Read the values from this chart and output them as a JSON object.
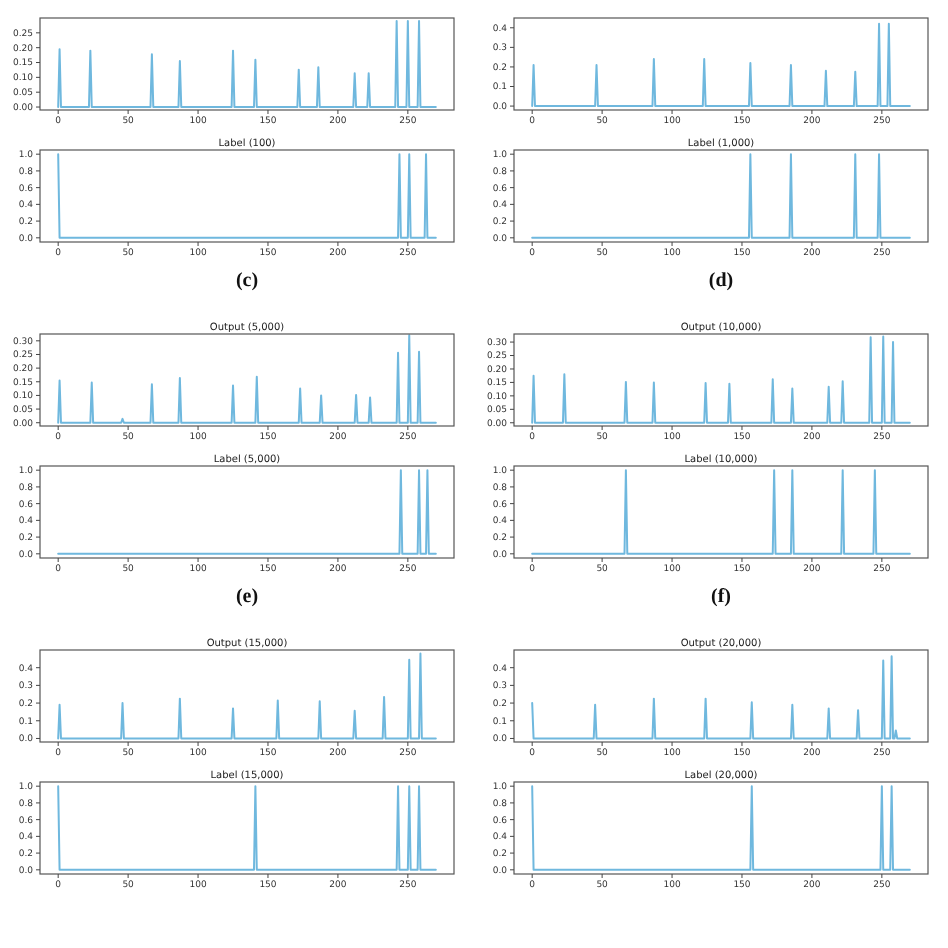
{
  "chart_data": [
    {
      "type": "line",
      "x": [
        0,
        1,
        2,
        22,
        23,
        24,
        66,
        67,
        68,
        86,
        87,
        88,
        124,
        125,
        126,
        140,
        141,
        142,
        171,
        172,
        173,
        185,
        186,
        187,
        211,
        212,
        213,
        221,
        222,
        223,
        241,
        242,
        243,
        249,
        250,
        251,
        257,
        258,
        259,
        270
      ],
      "series": [
        {
          "color": "#6fb8de",
          "values": [
            0,
            0.195,
            0,
            0,
            0.19,
            0,
            0,
            0.178,
            0,
            0,
            0.155,
            0,
            0,
            0.19,
            0,
            0,
            0.159,
            0,
            0,
            0.126,
            0,
            0,
            0.134,
            0,
            0,
            0.114,
            0,
            0,
            0.114,
            0,
            0,
            0.29,
            0,
            0,
            0.29,
            0,
            0,
            0.29,
            0,
            0
          ]
        }
      ],
      "xlim": [
        -13,
        283
      ],
      "ylim": [
        -0.01,
        0.3
      ],
      "xticks": [
        0,
        50,
        100,
        150,
        200,
        250
      ],
      "yticks": [
        {
          "value": 0,
          "label": "0.00"
        },
        0.05,
        {
          "value": 0.1,
          "label": "0.10"
        },
        0.15,
        {
          "value": 0.2,
          "label": "0.20"
        },
        0.25
      ]
    },
    {
      "type": "line",
      "x": [
        0,
        1,
        2,
        45,
        46,
        47,
        86,
        87,
        88,
        122,
        123,
        124,
        155,
        156,
        157,
        184,
        185,
        186,
        209,
        210,
        211,
        230,
        231,
        232,
        247,
        248,
        249,
        254,
        255,
        256,
        270
      ],
      "series": [
        {
          "color": "#6fb8de",
          "values": [
            0,
            0.21,
            0,
            0,
            0.21,
            0,
            0,
            0.24,
            0,
            0,
            0.24,
            0,
            0,
            0.22,
            0,
            0,
            0.21,
            0,
            0,
            0.18,
            0,
            0,
            0.175,
            0,
            0,
            0.42,
            0,
            0,
            0.42,
            0,
            0
          ]
        }
      ],
      "xlim": [
        -13,
        283
      ],
      "ylim": [
        -0.02,
        0.45
      ],
      "xticks": [
        0,
        50,
        100,
        150,
        200,
        250
      ],
      "yticks": [
        {
          "value": 0,
          "label": "0.0"
        },
        0.1,
        0.2,
        0.3,
        0.4
      ]
    },
    {
      "type": "line",
      "title": "Label (100)",
      "annotations": [
        "(c)"
      ],
      "x": [
        0,
        1,
        243,
        244,
        245,
        250,
        251,
        252,
        262,
        263,
        264,
        270
      ],
      "series": [
        {
          "color": "#6fb8de",
          "values": [
            1,
            0,
            0,
            1,
            0,
            0,
            1,
            0,
            0,
            1,
            0,
            0
          ]
        }
      ],
      "xlim": [
        -13,
        283
      ],
      "ylim": [
        -0.05,
        1.05
      ],
      "xticks": [
        0,
        50,
        100,
        150,
        200,
        250
      ],
      "yticks": [
        {
          "value": 0,
          "label": "0.0"
        },
        0.2,
        0.4,
        0.6,
        0.8,
        {
          "value": 1,
          "label": "1.0"
        }
      ]
    },
    {
      "type": "line",
      "title": "Label (1,000)",
      "annotations": [
        "(d)"
      ],
      "x": [
        0,
        155,
        156,
        157,
        184,
        185,
        186,
        230,
        231,
        232,
        247,
        248,
        249,
        270
      ],
      "series": [
        {
          "color": "#6fb8de",
          "values": [
            0,
            0,
            1,
            0,
            0,
            1,
            0,
            0,
            1,
            0,
            0,
            1,
            0,
            0
          ]
        }
      ],
      "xlim": [
        -13,
        283
      ],
      "ylim": [
        -0.05,
        1.05
      ],
      "xticks": [
        0,
        50,
        100,
        150,
        200,
        250
      ],
      "yticks": [
        {
          "value": 0,
          "label": "0.0"
        },
        0.2,
        0.4,
        0.6,
        0.8,
        {
          "value": 1,
          "label": "1.0"
        }
      ]
    },
    {
      "type": "line",
      "title": "Output (5,000)",
      "x": [
        0,
        1,
        2,
        23,
        24,
        25,
        45,
        46,
        47,
        66,
        67,
        68,
        86,
        87,
        88,
        124,
        125,
        126,
        141,
        142,
        143,
        172,
        173,
        174,
        187,
        188,
        189,
        212,
        213,
        214,
        222,
        223,
        224,
        242,
        243,
        244,
        250,
        251,
        252,
        257,
        258,
        259,
        270
      ],
      "series": [
        {
          "color": "#6fb8de",
          "values": [
            0,
            0.155,
            0,
            0,
            0.147,
            0,
            0,
            0.014,
            0,
            0,
            0.141,
            0,
            0,
            0.164,
            0,
            0,
            0.136,
            0,
            0,
            0.168,
            0,
            0,
            0.125,
            0,
            0,
            0.1,
            0,
            0,
            0.102,
            0,
            0,
            0.092,
            0,
            0,
            0.256,
            0,
            0,
            0.32,
            0,
            0,
            0.26,
            0,
            0
          ]
        }
      ],
      "xlim": [
        -13,
        283
      ],
      "ylim": [
        -0.012,
        0.325
      ],
      "xticks": [
        0,
        50,
        100,
        150,
        200,
        250
      ],
      "yticks": [
        {
          "value": 0,
          "label": "0.00"
        },
        0.05,
        {
          "value": 0.1,
          "label": "0.10"
        },
        0.15,
        {
          "value": 0.2,
          "label": "0.20"
        },
        0.25,
        {
          "value": 0.3,
          "label": "0.30"
        }
      ]
    },
    {
      "type": "line",
      "title": "Output (10,000)",
      "x": [
        0,
        1,
        2,
        22,
        23,
        24,
        66,
        67,
        68,
        86,
        87,
        88,
        123,
        124,
        125,
        140,
        141,
        142,
        171,
        172,
        173,
        185,
        186,
        187,
        211,
        212,
        213,
        221,
        222,
        223,
        241,
        242,
        243,
        250,
        251,
        252,
        257,
        258,
        259,
        270
      ],
      "series": [
        {
          "color": "#6fb8de",
          "values": [
            0,
            0.175,
            0,
            0,
            0.18,
            0,
            0,
            0.152,
            0,
            0,
            0.15,
            0,
            0,
            0.148,
            0,
            0,
            0.145,
            0,
            0,
            0.162,
            0,
            0,
            0.127,
            0,
            0,
            0.134,
            0,
            0,
            0.154,
            0,
            0,
            0.318,
            0,
            0,
            0.321,
            0,
            0,
            0.3,
            0,
            0
          ]
        }
      ],
      "xlim": [
        -13,
        283
      ],
      "ylim": [
        -0.012,
        0.33
      ],
      "xticks": [
        0,
        50,
        100,
        150,
        200,
        250
      ],
      "yticks": [
        {
          "value": 0,
          "label": "0.00"
        },
        0.05,
        {
          "value": 0.1,
          "label": "0.10"
        },
        0.15,
        {
          "value": 0.2,
          "label": "0.20"
        },
        0.25,
        {
          "value": 0.3,
          "label": "0.30"
        }
      ]
    },
    {
      "type": "line",
      "title": "Label (5,000)",
      "annotations": [
        "(e)"
      ],
      "x": [
        0,
        244,
        245,
        246,
        257,
        258,
        259,
        263,
        264,
        265,
        270
      ],
      "series": [
        {
          "color": "#6fb8de",
          "values": [
            0,
            0,
            1,
            0,
            0,
            1,
            0,
            0,
            1,
            0,
            0
          ]
        }
      ],
      "xlim": [
        -13,
        283
      ],
      "ylim": [
        -0.05,
        1.05
      ],
      "xticks": [
        0,
        50,
        100,
        150,
        200,
        250
      ],
      "yticks": [
        {
          "value": 0,
          "label": "0.0"
        },
        0.2,
        0.4,
        0.6,
        0.8,
        {
          "value": 1,
          "label": "1.0"
        }
      ]
    },
    {
      "type": "line",
      "title": "Label (10,000)",
      "annotations": [
        "(f)"
      ],
      "x": [
        0,
        66,
        67,
        68,
        172,
        173,
        174,
        185,
        186,
        187,
        221,
        222,
        223,
        244,
        245,
        246,
        270
      ],
      "series": [
        {
          "color": "#6fb8de",
          "values": [
            0,
            0,
            1,
            0,
            0,
            1,
            0,
            0,
            1,
            0,
            0,
            1,
            0,
            0,
            1,
            0,
            0
          ]
        }
      ],
      "xlim": [
        -13,
        283
      ],
      "ylim": [
        -0.05,
        1.05
      ],
      "xticks": [
        0,
        50,
        100,
        150,
        200,
        250
      ],
      "yticks": [
        {
          "value": 0,
          "label": "0.0"
        },
        0.2,
        0.4,
        0.6,
        0.8,
        {
          "value": 1,
          "label": "1.0"
        }
      ]
    },
    {
      "type": "line",
      "title": "Output (15,000)",
      "x": [
        0,
        1,
        2,
        45,
        46,
        47,
        86,
        87,
        88,
        124,
        125,
        126,
        156,
        157,
        158,
        186,
        187,
        188,
        211,
        212,
        213,
        232,
        233,
        234,
        250,
        251,
        252,
        258,
        259,
        260,
        270
      ],
      "series": [
        {
          "color": "#6fb8de",
          "values": [
            0,
            0.19,
            0,
            0,
            0.2,
            0,
            0,
            0.225,
            0,
            0,
            0.17,
            0,
            0,
            0.215,
            0,
            0,
            0.21,
            0,
            0,
            0.157,
            0,
            0,
            0.235,
            0,
            0,
            0.445,
            0,
            0,
            0.48,
            0,
            0
          ]
        }
      ],
      "xlim": [
        -13,
        283
      ],
      "ylim": [
        -0.02,
        0.5
      ],
      "xticks": [
        0,
        50,
        100,
        150,
        200,
        250
      ],
      "yticks": [
        {
          "value": 0,
          "label": "0.0"
        },
        0.1,
        0.2,
        0.3,
        0.4
      ]
    },
    {
      "type": "line",
      "title": "Output (20,000)",
      "x": [
        0,
        1,
        44,
        45,
        46,
        86,
        87,
        88,
        123,
        124,
        125,
        156,
        157,
        158,
        185,
        186,
        187,
        211,
        212,
        213,
        232,
        233,
        234,
        250,
        251,
        252,
        256,
        257,
        258,
        259,
        260,
        261,
        270
      ],
      "series": [
        {
          "color": "#6fb8de",
          "values": [
            0.2,
            0,
            0,
            0.19,
            0,
            0,
            0.225,
            0,
            0,
            0.225,
            0,
            0,
            0.205,
            0,
            0,
            0.19,
            0,
            0,
            0.17,
            0,
            0,
            0.16,
            0,
            0,
            0.44,
            0,
            0,
            0.465,
            0,
            0,
            0.045,
            0,
            0
          ]
        }
      ],
      "xlim": [
        -13,
        283
      ],
      "ylim": [
        -0.02,
        0.5
      ],
      "xticks": [
        0,
        50,
        100,
        150,
        200,
        250
      ],
      "yticks": [
        {
          "value": 0,
          "label": "0.0"
        },
        0.1,
        0.2,
        0.3,
        0.4
      ]
    },
    {
      "type": "line",
      "title": "Label (15,000)",
      "x": [
        0,
        1,
        140,
        141,
        142,
        242,
        243,
        244,
        250,
        251,
        252,
        257,
        258,
        259,
        270
      ],
      "series": [
        {
          "color": "#6fb8de",
          "values": [
            1,
            0,
            0,
            1,
            0,
            0,
            1,
            0,
            0,
            1,
            0,
            0,
            1,
            0,
            0
          ]
        }
      ],
      "xlim": [
        -13,
        283
      ],
      "ylim": [
        -0.05,
        1.05
      ],
      "xticks": [
        0,
        50,
        100,
        150,
        200,
        250
      ],
      "yticks": [
        {
          "value": 0,
          "label": "0.0"
        },
        0.2,
        0.4,
        0.6,
        0.8,
        {
          "value": 1,
          "label": "1.0"
        }
      ]
    },
    {
      "type": "line",
      "title": "Label (20,000)",
      "x": [
        0,
        1,
        156,
        157,
        158,
        249,
        250,
        251,
        256,
        257,
        258,
        270
      ],
      "series": [
        {
          "color": "#6fb8de",
          "values": [
            1,
            0,
            0,
            1,
            0,
            0,
            1,
            0,
            0,
            1,
            0,
            0
          ]
        }
      ],
      "xlim": [
        -13,
        283
      ],
      "ylim": [
        -0.05,
        1.05
      ],
      "xticks": [
        0,
        50,
        100,
        150,
        200,
        250
      ],
      "yticks": [
        {
          "value": 0,
          "label": "0.0"
        },
        0.2,
        0.4,
        0.6,
        0.8,
        {
          "value": 1,
          "label": "1.0"
        }
      ]
    }
  ]
}
